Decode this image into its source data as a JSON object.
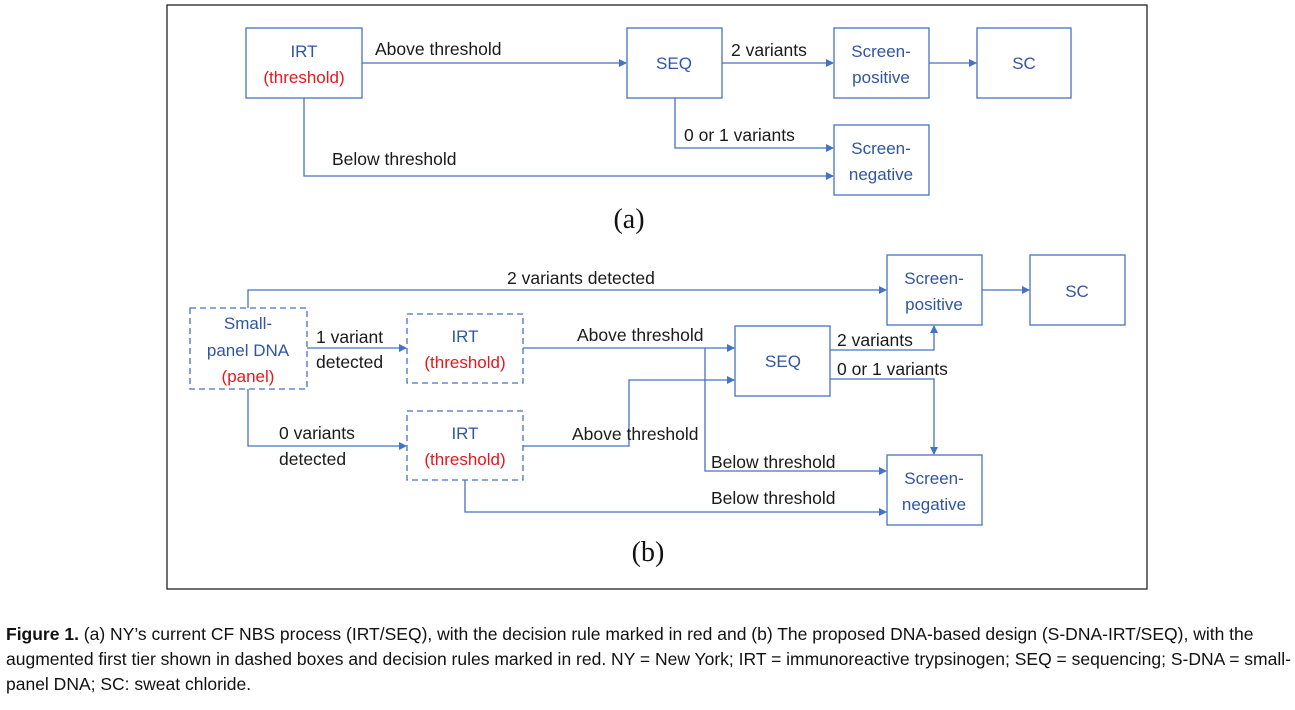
{
  "panel_a": {
    "label": "(a)",
    "boxes": {
      "irt_title": "IRT",
      "irt_rule": "(threshold)",
      "seq": "SEQ",
      "screen_pos_1": "Screen-",
      "screen_pos_2": "positive",
      "sc": "SC",
      "screen_neg_1": "Screen-",
      "screen_neg_2": "negative"
    },
    "edges": {
      "above": "Above threshold",
      "two_variants": "2 variants",
      "zero_one_variants": "0 or 1 variants",
      "below": "Below threshold"
    }
  },
  "panel_b": {
    "label": "(b)",
    "boxes": {
      "dna_1": "Small-",
      "dna_2": "panel DNA",
      "dna_rule": "(panel)",
      "irt1_title": "IRT",
      "irt1_rule": "(threshold)",
      "irt2_title": "IRT",
      "irt2_rule": "(threshold)",
      "seq": "SEQ",
      "screen_pos_1": "Screen-",
      "screen_pos_2": "positive",
      "sc": "SC",
      "screen_neg_1": "Screen-",
      "screen_neg_2": "negative"
    },
    "edges": {
      "two_detected": "2 variants detected",
      "one_variant_1": "1 variant",
      "one_variant_2": "detected",
      "zero_variants_1": "0 variants",
      "zero_variants_2": "detected",
      "above_1": "Above threshold",
      "above_2": "Above threshold",
      "two_variants": "2 variants",
      "zero_one_variants": "0 or 1 variants",
      "below_1": "Below threshold",
      "below_2": "Below threshold"
    }
  },
  "caption": {
    "prefix": "Figure 1.",
    "text": " (a) NY’s current CF NBS process (IRT/SEQ), with the decision rule marked in red and (b) The proposed DNA-based design (S-DNA-IRT/SEQ), with the augmented first tier shown in dashed boxes and decision rules marked in red. NY = New York; IRT = immunoreactive trypsinogen; SEQ = sequencing; S-DNA = small-panel DNA; SC: sweat chloride."
  },
  "colors": {
    "box": "#4472C4",
    "text": "#2F55A4",
    "rule": "#E8171F"
  }
}
